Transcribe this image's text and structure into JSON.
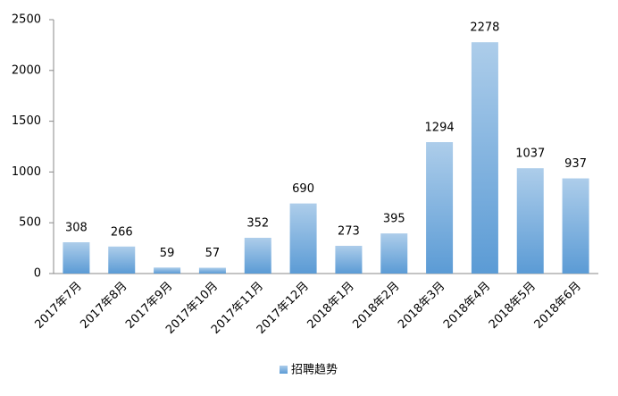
{
  "chart_data": {
    "type": "bar",
    "categories": [
      "2017年7月",
      "2017年8月",
      "2017年9月",
      "2017年10月",
      "2017年11月",
      "2017年12月",
      "2018年1月",
      "2018年2月",
      "2018年3月",
      "2018年4月",
      "2018年5月",
      "2018年6月"
    ],
    "series": [
      {
        "name": "招聘趋势",
        "color": "#5b9bd5",
        "values": [
          308,
          266,
          59,
          57,
          352,
          690,
          273,
          395,
          1294,
          2278,
          1037,
          937
        ]
      }
    ],
    "ylim": [
      0,
      2500
    ],
    "yticks": [
      0,
      500,
      1000,
      1500,
      2000,
      2500
    ],
    "grid": false,
    "legend": "bottom"
  }
}
